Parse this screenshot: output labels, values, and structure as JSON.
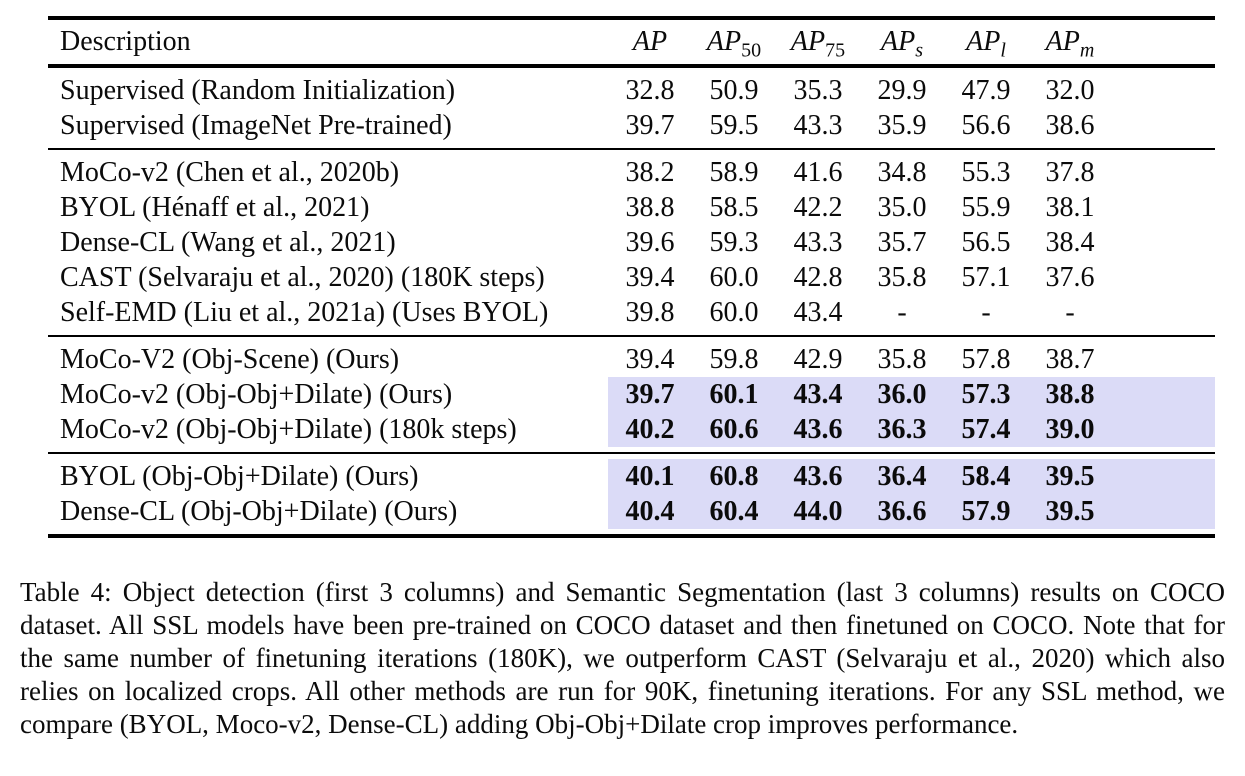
{
  "colors": {
    "highlight": "#dbdbf7",
    "rule": "#000000",
    "text": "#0b0b0b",
    "background": "#ffffff"
  },
  "table": {
    "headers": [
      {
        "label": "Description",
        "sub": "",
        "italic": false
      },
      {
        "label": "AP",
        "sub": "",
        "italic": true
      },
      {
        "label": "AP",
        "sub": "50",
        "italic": true
      },
      {
        "label": "AP",
        "sub": "75",
        "italic": true
      },
      {
        "label": "AP",
        "sub": "s",
        "italic": true
      },
      {
        "label": "AP",
        "sub": "l",
        "italic": true
      },
      {
        "label": "AP",
        "sub": "m",
        "italic": true
      }
    ],
    "sections": [
      {
        "name": "supervised-baselines",
        "rows": [
          {
            "label": "Supervised (Random Initialization)",
            "values": [
              "32.8",
              "50.9",
              "35.3",
              "29.9",
              "47.9",
              "32.0"
            ],
            "highlight": false
          },
          {
            "label": "Supervised (ImageNet Pre-trained)",
            "values": [
              "39.7",
              "59.5",
              "43.3",
              "35.9",
              "56.6",
              "38.6"
            ],
            "highlight": false
          }
        ]
      },
      {
        "name": "ssl-baselines",
        "rows": [
          {
            "label": "MoCo-v2 (Chen et al., 2020b)",
            "values": [
              "38.2",
              "58.9",
              "41.6",
              "34.8",
              "55.3",
              "37.8"
            ],
            "highlight": false
          },
          {
            "label": "BYOL (Hénaff et al., 2021)",
            "values": [
              "38.8",
              "58.5",
              "42.2",
              "35.0",
              "55.9",
              "38.1"
            ],
            "highlight": false
          },
          {
            "label": "Dense-CL (Wang et al., 2021)",
            "values": [
              "39.6",
              "59.3",
              "43.3",
              "35.7",
              "56.5",
              "38.4"
            ],
            "highlight": false
          },
          {
            "label": "CAST (Selvaraju et al., 2020) (180K steps)",
            "values": [
              "39.4",
              "60.0",
              "42.8",
              "35.8",
              "57.1",
              "37.6"
            ],
            "highlight": false
          },
          {
            "label": "Self-EMD (Liu et al., 2021a) (Uses BYOL)",
            "values": [
              "39.8",
              "60.0",
              "43.4",
              "-",
              "-",
              "-"
            ],
            "highlight": false
          }
        ]
      },
      {
        "name": "ours-moco",
        "rows": [
          {
            "label": "MoCo-V2 (Obj-Scene) (Ours)",
            "values": [
              "39.4",
              "59.8",
              "42.9",
              "35.8",
              "57.8",
              "38.7"
            ],
            "highlight": false
          },
          {
            "label": "MoCo-v2 (Obj-Obj+Dilate) (Ours)",
            "values": [
              "39.7",
              "60.1",
              "43.4",
              "36.0",
              "57.3",
              "38.8"
            ],
            "highlight": true
          },
          {
            "label": "MoCo-v2 (Obj-Obj+Dilate) (180k steps)",
            "values": [
              "40.2",
              "60.6",
              "43.6",
              "36.3",
              "57.4",
              "39.0"
            ],
            "highlight": true
          }
        ]
      },
      {
        "name": "ours-byol-densecl",
        "rows": [
          {
            "label": "BYOL (Obj-Obj+Dilate) (Ours)",
            "values": [
              "40.1",
              "60.8",
              "43.6",
              "36.4",
              "58.4",
              "39.5"
            ],
            "highlight": true
          },
          {
            "label": "Dense-CL (Obj-Obj+Dilate) (Ours)",
            "values": [
              "40.4",
              "60.4",
              "44.0",
              "36.6",
              "57.9",
              "39.5"
            ],
            "highlight": true
          }
        ]
      }
    ]
  },
  "caption": "Table 4: Object detection (first 3 columns) and Semantic Segmentation (last 3 columns) results on COCO dataset. All SSL models have been pre-trained on COCO dataset and then finetuned on COCO. Note that for the same number of finetuning iterations (180K), we outperform CAST (Selvaraju et al., 2020) which also relies on localized crops. All other methods are run for 90K, finetuning iterations. For any SSL method, we compare (BYOL, Moco-v2, Dense-CL) adding Obj-Obj+Dilate crop improves performance."
}
